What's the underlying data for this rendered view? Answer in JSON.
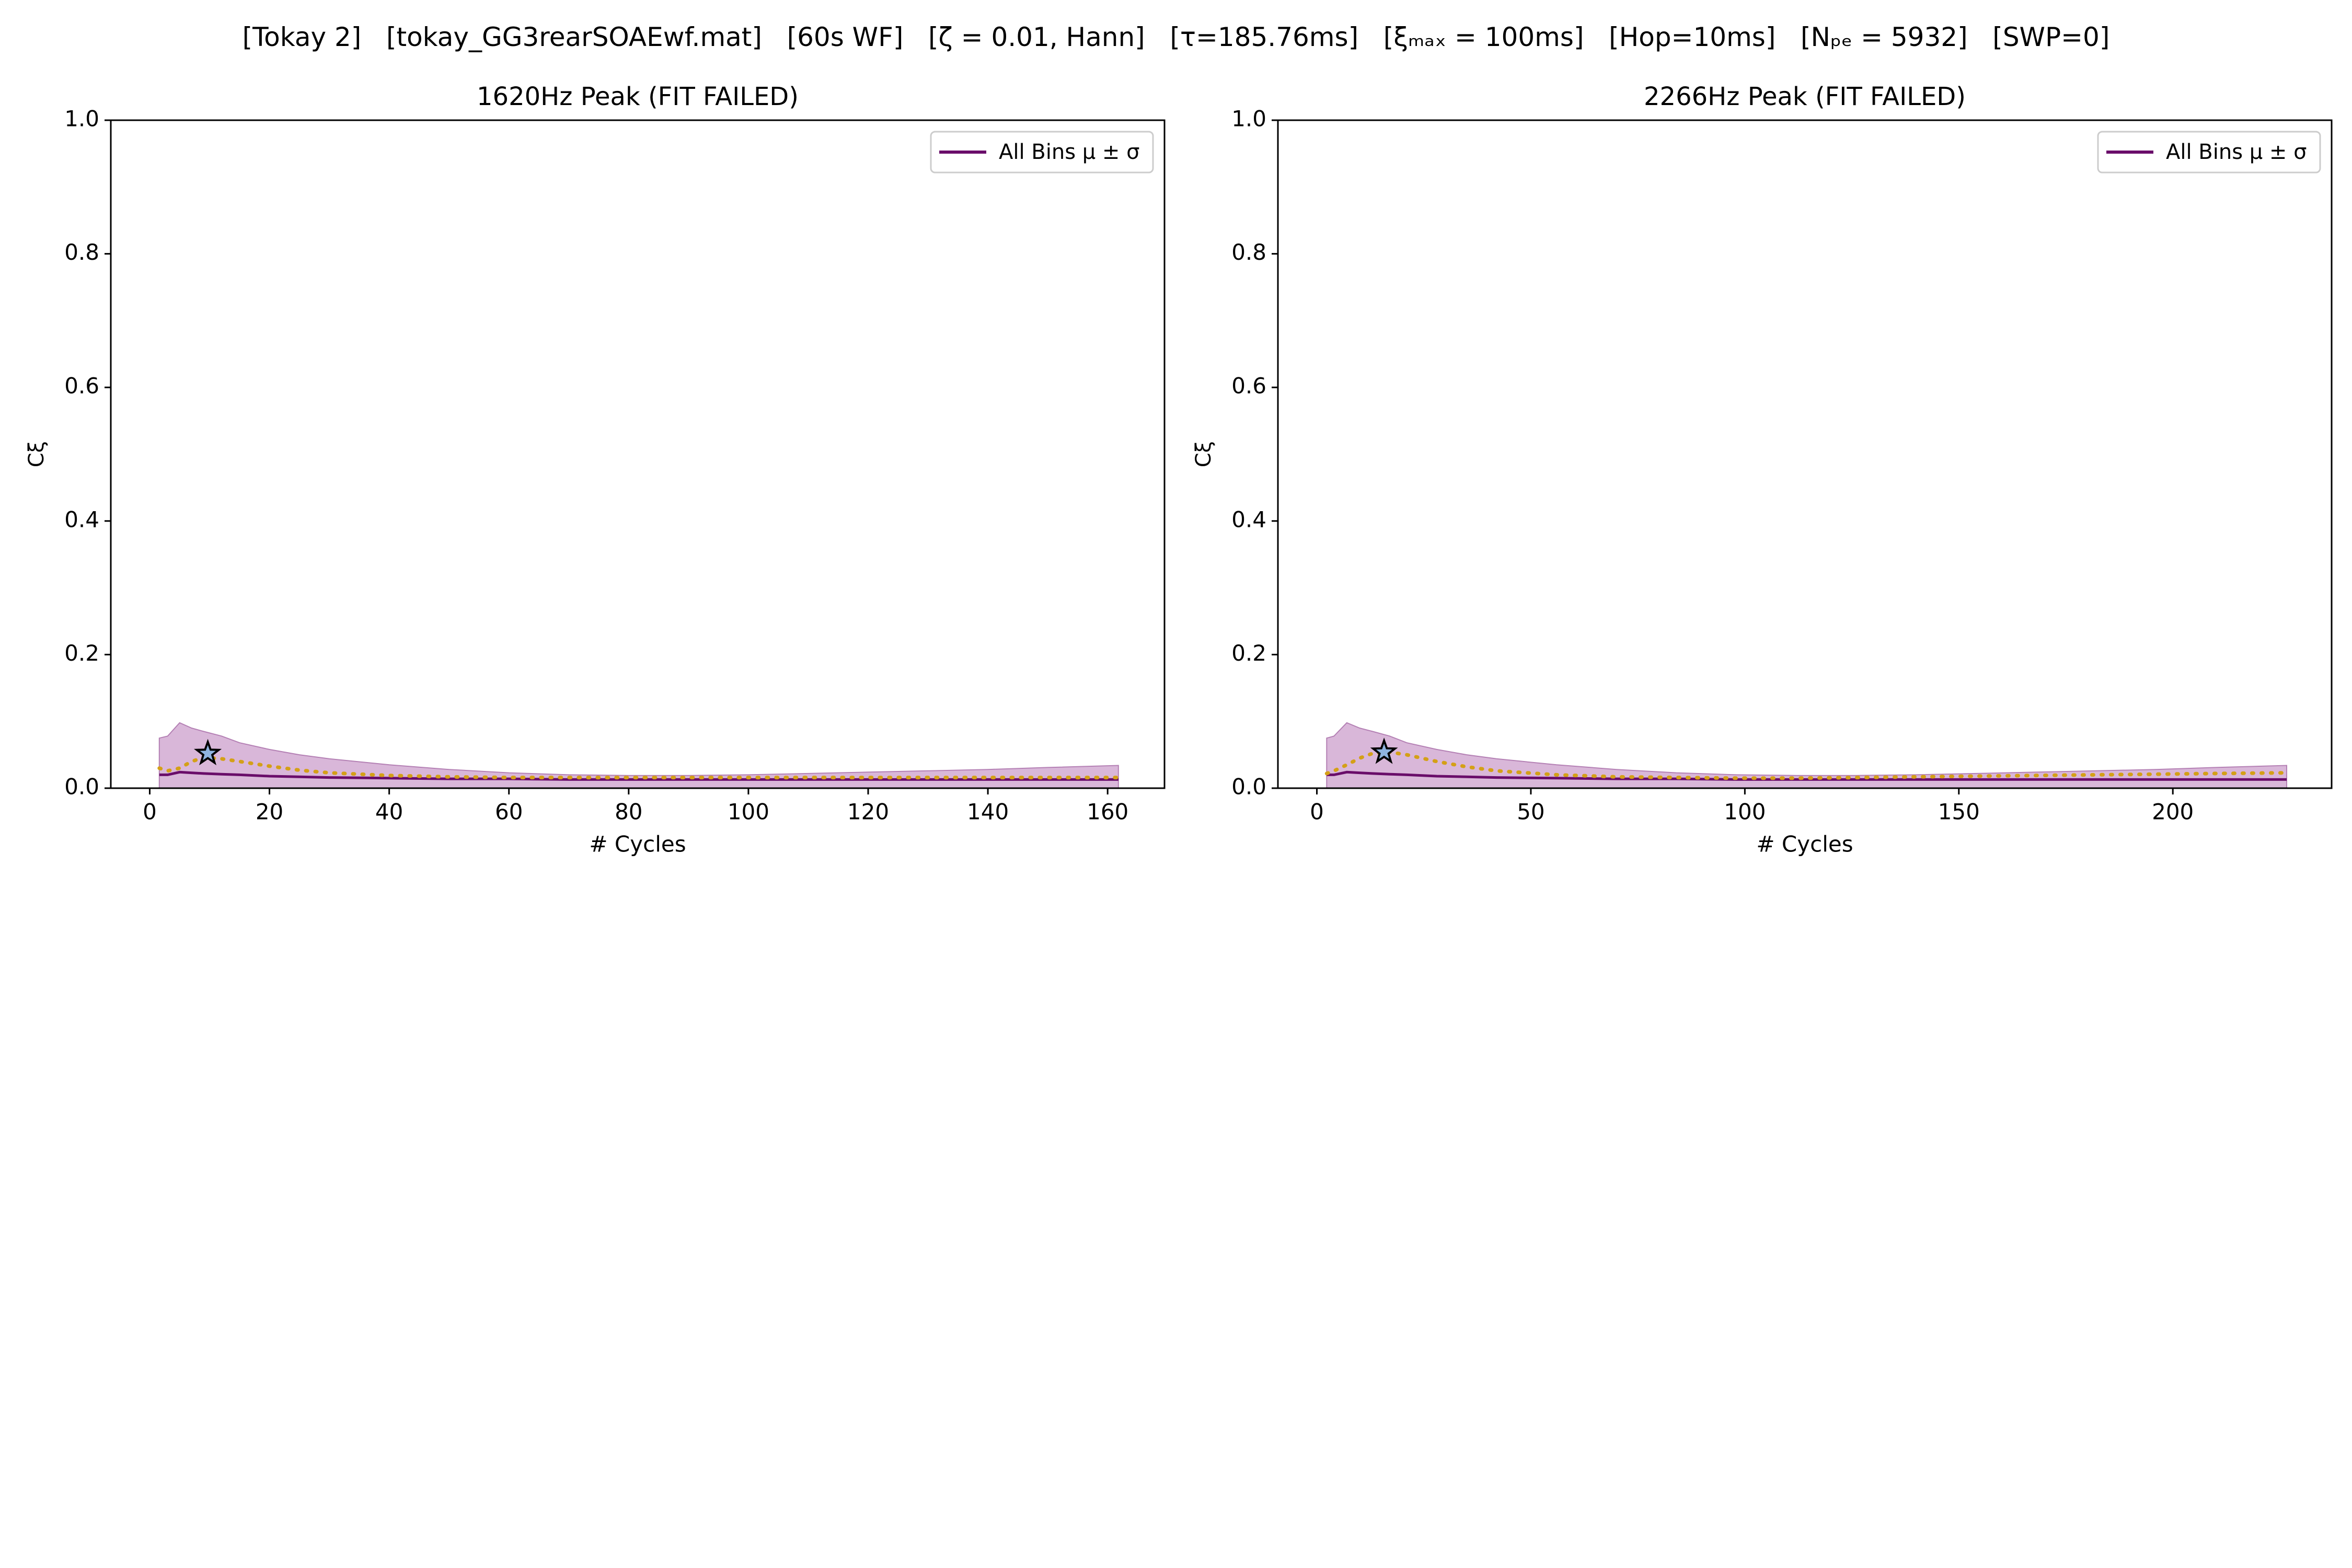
{
  "figure": {
    "title": "[Tokay 2]   [tokay_GG3rearSOAEwf.mat]   [60s WF]   [ζ = 0.01, Hann]   [τ=185.76ms]   [ξₘₐₓ = 100ms]   [Hop=10ms]   [Nₚₑ = 5932]   [SWP=0]"
  },
  "chart_data": [
    {
      "type": "line",
      "title": "1620Hz Peak (FIT FAILED)",
      "xlabel": "# Cycles",
      "ylabel": "Cξ",
      "xlim": [
        -6.5,
        169.5
      ],
      "ylim": [
        0,
        1
      ],
      "xticks": [
        "0",
        "20",
        "40",
        "60",
        "80",
        "100",
        "120",
        "140",
        "160"
      ],
      "xtick_values": [
        0,
        20,
        40,
        60,
        80,
        100,
        120,
        140,
        160
      ],
      "yticks": [
        "0.0",
        "0.2",
        "0.4",
        "0.6",
        "0.8",
        "1.0"
      ],
      "ytick_values": [
        0,
        0.2,
        0.4,
        0.6,
        0.8,
        1.0
      ],
      "grid": false,
      "legend": {
        "position": "upper-right",
        "entries": [
          "All Bins μ ± σ"
        ]
      },
      "series": [
        {
          "name": "All Bins μ ± σ",
          "color": "#6a0d6a",
          "band_color": "#d8b4d8",
          "x": [
            1.6,
            3,
            5,
            7,
            9,
            12,
            15,
            20,
            25,
            30,
            40,
            50,
            60,
            70,
            80,
            90,
            100,
            110,
            120,
            130,
            140,
            150,
            161.8
          ],
          "mean": [
            0.02,
            0.02,
            0.024,
            0.023,
            0.022,
            0.021,
            0.02,
            0.018,
            0.017,
            0.016,
            0.015,
            0.014,
            0.014,
            0.013,
            0.013,
            0.013,
            0.013,
            0.013,
            0.013,
            0.013,
            0.013,
            0.013,
            0.013
          ],
          "upper": [
            0.075,
            0.078,
            0.098,
            0.09,
            0.085,
            0.078,
            0.068,
            0.058,
            0.05,
            0.044,
            0.035,
            0.028,
            0.023,
            0.02,
            0.019,
            0.019,
            0.02,
            0.022,
            0.024,
            0.026,
            0.028,
            0.031,
            0.034
          ],
          "lower": [
            0,
            0,
            0,
            0,
            0,
            0,
            0,
            0,
            0,
            0,
            0,
            0,
            0,
            0,
            0,
            0,
            0,
            0,
            0,
            0,
            0,
            0,
            0
          ]
        },
        {
          "color": "#d4a017",
          "style": "dotted",
          "x": [
            1.6,
            3,
            5,
            7,
            9,
            12,
            15,
            20,
            25,
            30,
            40,
            50,
            60,
            70,
            80,
            90,
            100,
            110,
            120,
            130,
            140,
            150,
            161.8
          ],
          "values": [
            0.03,
            0.026,
            0.03,
            0.04,
            0.046,
            0.044,
            0.04,
            0.033,
            0.027,
            0.023,
            0.019,
            0.017,
            0.016,
            0.016,
            0.016,
            0.016,
            0.016,
            0.016,
            0.016,
            0.016,
            0.016,
            0.016,
            0.016
          ]
        }
      ],
      "marker": {
        "shape": "star",
        "x": 9.7,
        "y": 0.052,
        "fill": "#8fb4e0"
      }
    },
    {
      "type": "line",
      "title": "2266Hz Peak (FIT FAILED)",
      "xlabel": "# Cycles",
      "ylabel": "Cξ",
      "xlim": [
        -9.1,
        237.1
      ],
      "ylim": [
        0,
        1
      ],
      "xticks": [
        "0",
        "50",
        "100",
        "150",
        "200"
      ],
      "xtick_values": [
        0,
        50,
        100,
        150,
        200
      ],
      "yticks": [
        "0.0",
        "0.2",
        "0.4",
        "0.6",
        "0.8",
        "1.0"
      ],
      "ytick_values": [
        0,
        0.2,
        0.4,
        0.6,
        0.8,
        1.0
      ],
      "grid": false,
      "legend": {
        "position": "upper-right",
        "entries": [
          "All Bins μ ± σ"
        ]
      },
      "series": [
        {
          "name": "All Bins μ ± σ",
          "color": "#6a0d6a",
          "band_color": "#d8b4d8",
          "x": [
            2.3,
            4,
            7,
            10,
            13,
            17,
            21,
            28,
            35,
            42,
            56,
            70,
            84,
            98,
            112,
            126,
            140,
            154,
            168,
            182,
            196,
            210,
            226.6
          ],
          "mean": [
            0.02,
            0.02,
            0.024,
            0.023,
            0.022,
            0.021,
            0.02,
            0.018,
            0.017,
            0.016,
            0.015,
            0.014,
            0.014,
            0.013,
            0.013,
            0.013,
            0.013,
            0.013,
            0.013,
            0.013,
            0.013,
            0.013,
            0.013
          ],
          "upper": [
            0.075,
            0.078,
            0.098,
            0.09,
            0.085,
            0.078,
            0.068,
            0.058,
            0.05,
            0.044,
            0.035,
            0.028,
            0.023,
            0.02,
            0.019,
            0.019,
            0.02,
            0.022,
            0.024,
            0.026,
            0.028,
            0.031,
            0.034
          ],
          "lower": [
            0,
            0,
            0,
            0,
            0,
            0,
            0,
            0,
            0,
            0,
            0,
            0,
            0,
            0,
            0,
            0,
            0,
            0,
            0,
            0,
            0,
            0,
            0
          ]
        },
        {
          "color": "#d4a017",
          "style": "dotted",
          "x": [
            2.3,
            4,
            7,
            10,
            13,
            17,
            21,
            28,
            35,
            42,
            56,
            70,
            84,
            98,
            112,
            126,
            140,
            154,
            168,
            182,
            196,
            210,
            226.6
          ],
          "values": [
            0.022,
            0.026,
            0.035,
            0.045,
            0.052,
            0.054,
            0.05,
            0.04,
            0.032,
            0.026,
            0.02,
            0.017,
            0.016,
            0.015,
            0.015,
            0.016,
            0.017,
            0.018,
            0.019,
            0.02,
            0.021,
            0.022,
            0.023
          ]
        }
      ],
      "marker": {
        "shape": "star",
        "x": 15.7,
        "y": 0.054,
        "fill": "#8fb4e0"
      }
    }
  ]
}
